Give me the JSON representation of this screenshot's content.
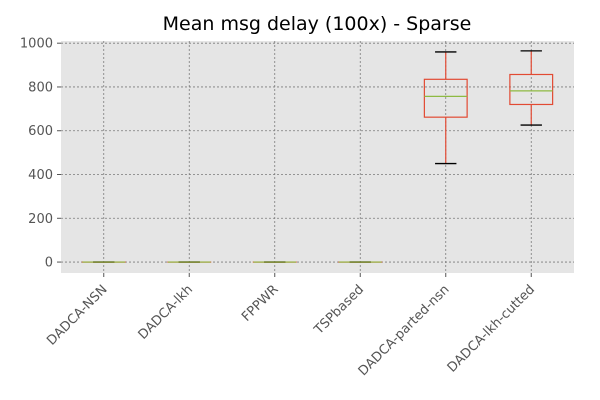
{
  "chart_data": {
    "type": "box",
    "title": "Mean msg delay (100x) - Sparse",
    "xlabel": "",
    "ylabel": "",
    "ylim": [
      -50,
      1010
    ],
    "yticks": [
      0,
      200,
      400,
      600,
      800,
      1000
    ],
    "ytick_labels": [
      "0",
      "200",
      "400",
      "600",
      "800",
      "1000"
    ],
    "grid": true,
    "categories": [
      "DADCA-NSN",
      "DADCA-lkh",
      "FPPWR",
      "TSPbased",
      "DADCA-parted-nsn",
      "DADCA-lkh-cutted"
    ],
    "boxes": [
      {
        "category": "DADCA-NSN",
        "whisker_low": 0,
        "q1": 0,
        "median": 0,
        "q3": 0,
        "whisker_high": 0
      },
      {
        "category": "DADCA-lkh",
        "whisker_low": 0,
        "q1": 0,
        "median": 0,
        "q3": 0,
        "whisker_high": 0
      },
      {
        "category": "FPPWR",
        "whisker_low": 0,
        "q1": 0,
        "median": 0,
        "q3": 0,
        "whisker_high": 0
      },
      {
        "category": "TSPbased",
        "whisker_low": 0,
        "q1": 0,
        "median": 0,
        "q3": 0,
        "whisker_high": 0
      },
      {
        "category": "DADCA-parted-nsn",
        "whisker_low": 450,
        "q1": 662,
        "median": 757,
        "q3": 835,
        "whisker_high": 960
      },
      {
        "category": "DADCA-lkh-cutted",
        "whisker_low": 626,
        "q1": 720,
        "median": 782,
        "q3": 857,
        "whisker_high": 965
      }
    ],
    "colors": {
      "background": "#e5e5e5",
      "grid": "#7a7a7a",
      "box": "#e24a33",
      "median": "#8eba42",
      "whisker_cap": "#000000",
      "tick_text": "#555555"
    }
  }
}
